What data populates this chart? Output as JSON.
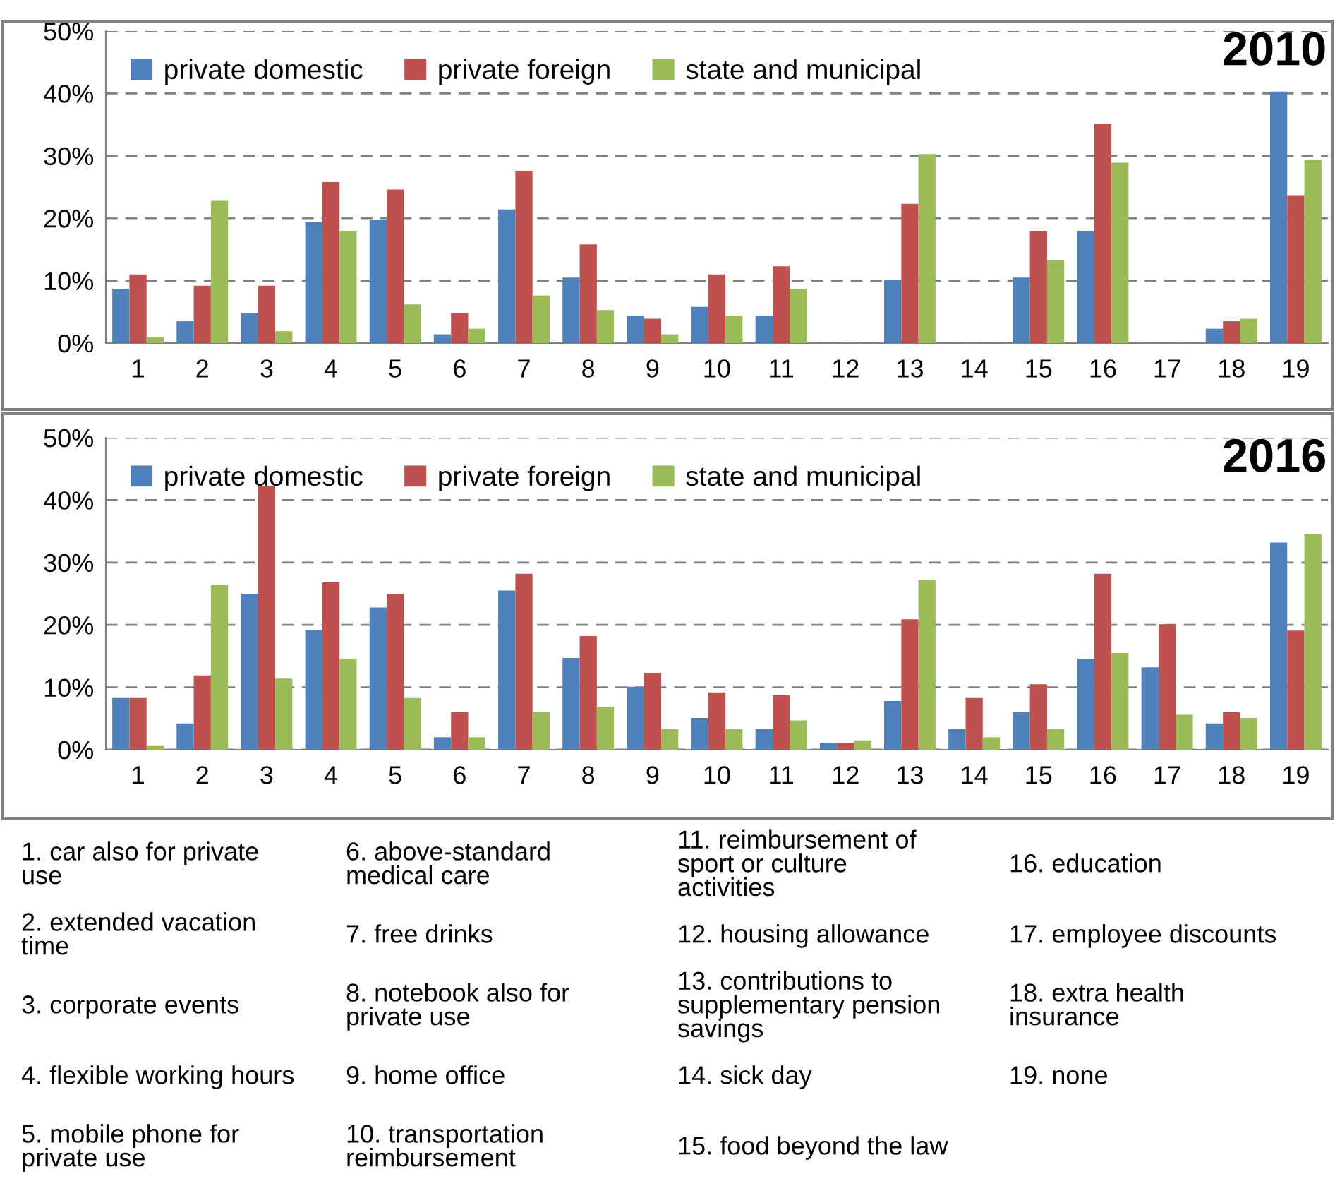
{
  "chart_data": [
    {
      "type": "bar",
      "title": "2010",
      "categories": [
        "1",
        "2",
        "3",
        "4",
        "5",
        "6",
        "7",
        "8",
        "9",
        "10",
        "11",
        "12",
        "13",
        "14",
        "15",
        "16",
        "17",
        "18",
        "19"
      ],
      "series": [
        {
          "name": "private domestic",
          "color": "#4f81bd",
          "values": [
            8.7,
            3.5,
            4.8,
            19.4,
            19.8,
            1.4,
            21.4,
            10.5,
            4.4,
            5.8,
            4.4,
            null,
            10.1,
            null,
            10.5,
            18.0,
            null,
            2.3,
            40.3
          ]
        },
        {
          "name": "private foreign",
          "color": "#c0504d",
          "values": [
            11.0,
            9.2,
            9.2,
            25.8,
            24.6,
            4.8,
            27.6,
            15.8,
            3.9,
            11.0,
            12.3,
            null,
            22.3,
            null,
            18.0,
            35.1,
            null,
            3.5,
            23.7
          ]
        },
        {
          "name": "state and municipal",
          "color": "#9bbb59",
          "values": [
            1.0,
            22.8,
            1.9,
            18.0,
            6.2,
            2.3,
            7.6,
            5.3,
            1.4,
            4.4,
            8.7,
            null,
            30.3,
            null,
            13.3,
            28.9,
            null,
            3.9,
            29.4
          ]
        }
      ],
      "ylim": [
        0,
        50
      ],
      "yticks": [
        {
          "value": 0,
          "label": "0%"
        },
        {
          "value": 10,
          "label": "10%"
        },
        {
          "value": 20,
          "label": "20%"
        },
        {
          "value": 30,
          "label": "30%"
        },
        {
          "value": 40,
          "label": "40%"
        },
        {
          "value": 50,
          "label": "50%"
        }
      ],
      "grid": "y",
      "legend": "top"
    },
    {
      "type": "bar",
      "title": "2016",
      "categories": [
        "1",
        "2",
        "3",
        "4",
        "5",
        "6",
        "7",
        "8",
        "9",
        "10",
        "11",
        "12",
        "13",
        "14",
        "15",
        "16",
        "17",
        "18",
        "19"
      ],
      "series": [
        {
          "name": "private domestic",
          "color": "#4f81bd",
          "values": [
            8.3,
            4.2,
            25.0,
            19.2,
            22.8,
            2.0,
            25.5,
            14.7,
            10.1,
            5.1,
            3.3,
            1.1,
            7.8,
            3.3,
            6.0,
            14.6,
            13.2,
            4.2,
            33.2
          ]
        },
        {
          "name": "private foreign",
          "color": "#c0504d",
          "values": [
            8.3,
            11.9,
            42.2,
            26.8,
            25.0,
            6.0,
            28.2,
            18.2,
            12.3,
            9.2,
            8.7,
            1.1,
            20.9,
            8.3,
            10.5,
            28.2,
            20.1,
            6.0,
            19.1
          ]
        },
        {
          "name": "state and municipal",
          "color": "#9bbb59",
          "values": [
            0.6,
            26.4,
            11.4,
            14.6,
            8.3,
            2.0,
            6.0,
            6.9,
            3.3,
            3.3,
            4.7,
            1.5,
            27.2,
            2.0,
            3.3,
            15.5,
            5.6,
            5.1,
            34.5
          ]
        }
      ],
      "ylim": [
        0,
        50
      ],
      "yticks": [
        {
          "value": 0,
          "label": "0%"
        },
        {
          "value": 10,
          "label": "10%"
        },
        {
          "value": 20,
          "label": "20%"
        },
        {
          "value": 30,
          "label": "30%"
        },
        {
          "value": 40,
          "label": "40%"
        },
        {
          "value": 50,
          "label": "50%"
        }
      ],
      "grid": "y",
      "legend": "top"
    },
    {
      "type": "other",
      "annotations": [
        "1. car also for private\nuse",
        "2. extended vacation\ntime",
        "3. corporate events",
        "4. flexible working hours",
        "5. mobile phone for\nprivate use",
        "6. above-standard\nmedical care",
        "7. free drinks",
        "8. notebook also for\nprivate use",
        "9. home office",
        "10. transportation\nreimbursement",
        "11. reimbursement of\nsport or culture\nactivities",
        "12. housing allowance",
        "13. contributions to\nsupplementary pension\nsavings",
        "14. sick day",
        "15. food beyond the law",
        "16. education",
        "17. employee discounts",
        "18. extra health\ninsurance",
        "19. none"
      ]
    }
  ]
}
